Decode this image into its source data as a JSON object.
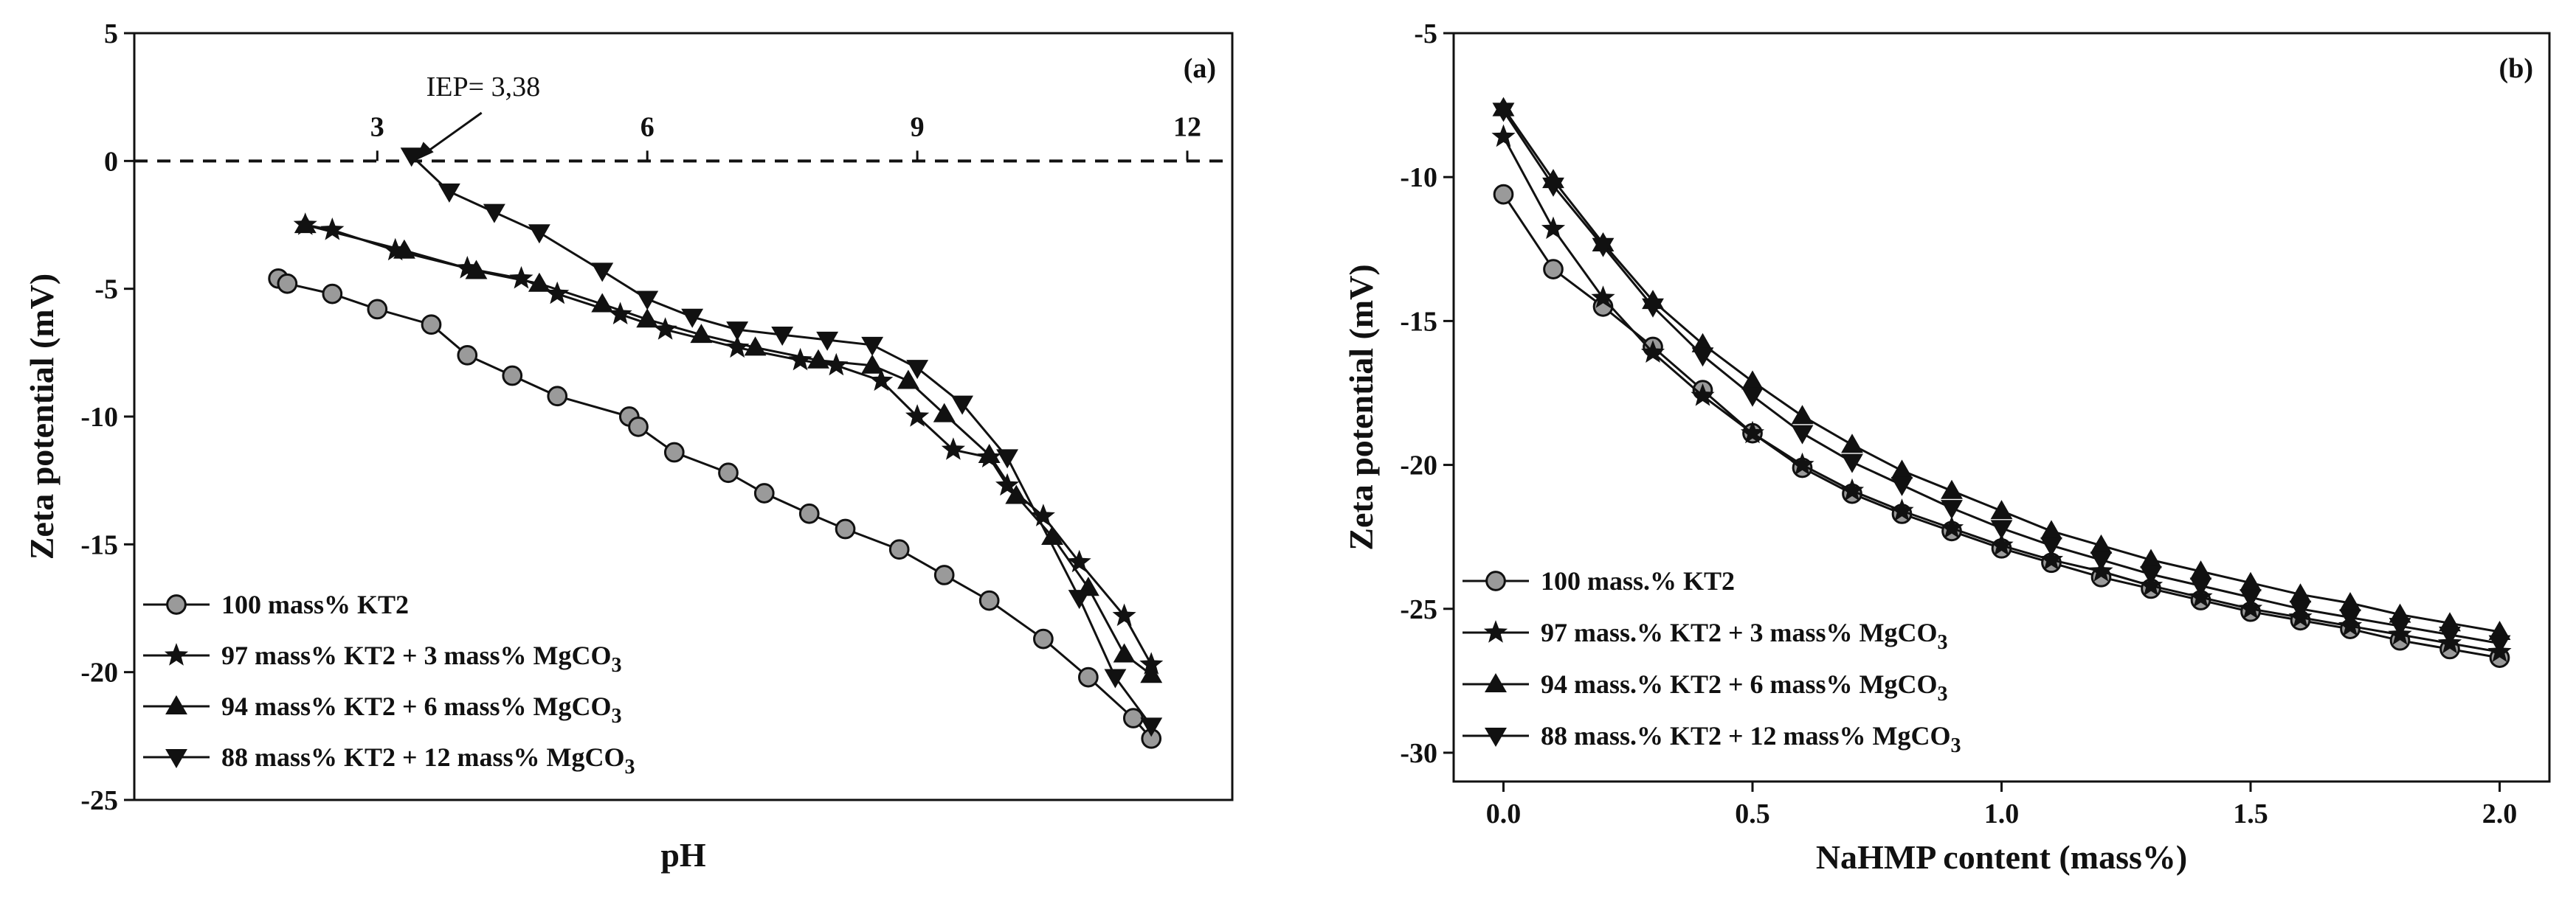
{
  "chart_data": [
    {
      "panel": "(a)",
      "type": "line",
      "xlabel": "pH",
      "ylabel": "Zeta potential (mV)",
      "xlim": [
        0.3,
        12.5
      ],
      "ylim": [
        -25,
        5
      ],
      "xticks": [
        3,
        6,
        9,
        12
      ],
      "yticks": [
        -25,
        -20,
        -15,
        -10,
        -5,
        0,
        5
      ],
      "annotation": "IEP= 3,38",
      "annotation_x": 3.38,
      "zero_line": true,
      "legend_position": "lower-left",
      "series": [
        {
          "name": "100 mass% KT2",
          "marker": "circle",
          "x": [
            1.9,
            2.0,
            2.5,
            3.0,
            3.6,
            4.0,
            4.5,
            5.0,
            5.8,
            5.9,
            6.3,
            6.9,
            7.3,
            7.8,
            8.2,
            8.8,
            9.3,
            9.8,
            10.4,
            10.9,
            11.4,
            11.6
          ],
          "y": [
            -4.6,
            -4.8,
            -5.2,
            -5.8,
            -6.4,
            -7.6,
            -8.4,
            -9.2,
            -10.0,
            -10.4,
            -11.4,
            -12.2,
            -13.0,
            -13.8,
            -14.4,
            -15.2,
            -16.2,
            -17.2,
            -18.7,
            -20.2,
            -21.8,
            -22.6
          ]
        },
        {
          "name": "97 mass% KT2 +  3 mass% MgCO",
          "sub": "3",
          "marker": "star",
          "x": [
            2.2,
            2.5,
            3.2,
            4.0,
            4.6,
            5.0,
            5.7,
            6.2,
            7.0,
            7.7,
            8.1,
            8.6,
            9.0,
            9.4,
            9.8,
            10.0,
            10.4,
            10.8,
            11.3,
            11.6
          ],
          "y": [
            -2.5,
            -2.7,
            -3.5,
            -4.2,
            -4.6,
            -5.2,
            -6.0,
            -6.6,
            -7.3,
            -7.8,
            -8.0,
            -8.6,
            -10.0,
            -11.3,
            -11.6,
            -12.7,
            -13.9,
            -15.7,
            -17.8,
            -19.7
          ]
        },
        {
          "name": "94 mass% KT2 +  6 mass% MgCO",
          "sub": "3",
          "marker": "triangle-up",
          "x": [
            2.2,
            3.3,
            4.1,
            4.8,
            5.5,
            6.0,
            6.6,
            7.2,
            7.9,
            8.5,
            8.9,
            9.3,
            9.8,
            10.1,
            10.5,
            10.9,
            11.3,
            11.6
          ],
          "y": [
            -2.5,
            -3.5,
            -4.3,
            -4.8,
            -5.6,
            -6.2,
            -6.8,
            -7.3,
            -7.8,
            -8.0,
            -8.6,
            -9.9,
            -11.5,
            -13.1,
            -14.7,
            -16.7,
            -19.3,
            -20.1
          ]
        },
        {
          "name": "88 mass% KT2 + 12 mass% MgCO",
          "sub": "3",
          "marker": "triangle-down",
          "x": [
            3.38,
            3.8,
            4.3,
            4.8,
            5.5,
            6.0,
            6.5,
            7.0,
            7.5,
            8.0,
            8.5,
            9.0,
            9.5,
            10.0,
            10.8,
            11.2,
            11.6
          ],
          "y": [
            0.2,
            -1.2,
            -2.0,
            -2.8,
            -4.3,
            -5.4,
            -6.1,
            -6.6,
            -6.8,
            -7.0,
            -7.2,
            -8.1,
            -9.5,
            -11.6,
            -17.1,
            -20.2,
            -22.1
          ]
        }
      ]
    },
    {
      "panel": "(b)",
      "type": "line",
      "xlabel": "NaHMP content (mass%)",
      "ylabel": "Zeta potential (mV)",
      "xlim": [
        -0.1,
        2.1
      ],
      "ylim": [
        -31,
        -5
      ],
      "xticks": [
        "0.0",
        "0.5",
        "1.0",
        "1.5",
        "2.0"
      ],
      "yticks": [
        -30,
        -25,
        -20,
        -15,
        -10,
        -5
      ],
      "legend_position": "lower-left",
      "x": [
        0,
        0.1,
        0.2,
        0.3,
        0.4,
        0.5,
        0.6,
        0.7,
        0.8,
        0.9,
        1.0,
        1.1,
        1.2,
        1.3,
        1.4,
        1.5,
        1.6,
        1.7,
        1.8,
        1.9,
        2.0
      ],
      "series": [
        {
          "name": "100 mass.% KT2",
          "marker": "circle",
          "y": [
            -10.6,
            -13.2,
            -14.5,
            -15.9,
            -17.4,
            -18.9,
            -20.1,
            -21.0,
            -21.7,
            -22.3,
            -22.9,
            -23.4,
            -23.9,
            -24.3,
            -24.7,
            -25.1,
            -25.4,
            -25.7,
            -26.1,
            -26.4,
            -26.7
          ]
        },
        {
          "name": "97 mass.% KT2 +  3 mass% MgCO",
          "sub": "3",
          "marker": "star",
          "y": [
            -8.6,
            -11.8,
            -14.2,
            -16.1,
            -17.6,
            -18.9,
            -20.0,
            -20.9,
            -21.6,
            -22.2,
            -22.8,
            -23.3,
            -23.7,
            -24.2,
            -24.6,
            -25.0,
            -25.3,
            -25.6,
            -25.9,
            -26.2,
            -26.5
          ]
        },
        {
          "name": "94 mass.% KT2 +  6 mass% MgCO",
          "sub": "3",
          "marker": "triangle-up",
          "y": [
            -7.6,
            -10.1,
            -12.3,
            -14.3,
            -15.8,
            -17.1,
            -18.3,
            -19.3,
            -20.2,
            -20.9,
            -21.6,
            -22.3,
            -22.8,
            -23.3,
            -23.7,
            -24.1,
            -24.5,
            -24.8,
            -25.2,
            -25.5,
            -25.8
          ]
        },
        {
          "name": "88 mass.% KT2 + 12 mass% MgCO",
          "sub": "3",
          "marker": "triangle-down",
          "y": [
            -7.7,
            -10.3,
            -12.4,
            -14.5,
            -16.2,
            -17.6,
            -18.9,
            -19.9,
            -20.7,
            -21.5,
            -22.2,
            -22.8,
            -23.3,
            -23.8,
            -24.2,
            -24.6,
            -25.0,
            -25.3,
            -25.6,
            -25.9,
            -26.2
          ]
        }
      ]
    }
  ]
}
